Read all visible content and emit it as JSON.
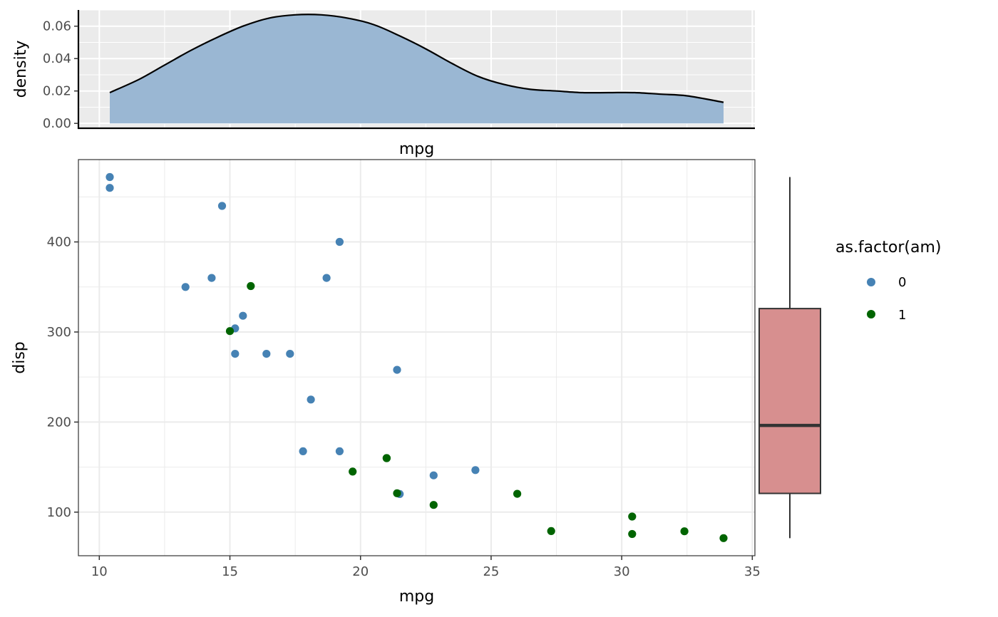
{
  "chart_data": [
    {
      "type": "area",
      "panel": "marginal-density",
      "xlabel": "mpg",
      "ylabel": "density",
      "xlim": [
        9.2,
        35.1
      ],
      "ylim": [
        -0.003,
        0.07
      ],
      "y_ticks": [
        0.0,
        0.02,
        0.04,
        0.06
      ],
      "y_tick_labels": [
        "0.00",
        "0.02",
        "0.04",
        "0.06"
      ],
      "grid": true,
      "fill_color": "#9AB7D3",
      "line_color": "#000000",
      "x": [
        10.4,
        11.5,
        12.5,
        13.5,
        14.5,
        15.5,
        16.5,
        17.5,
        18.5,
        19.5,
        20.5,
        21.5,
        22.5,
        23.5,
        24.5,
        25.5,
        26.5,
        27.5,
        28.5,
        29.5,
        30.5,
        31.5,
        32.5,
        33.9
      ],
      "y": [
        0.019,
        0.027,
        0.036,
        0.045,
        0.053,
        0.06,
        0.065,
        0.067,
        0.067,
        0.065,
        0.061,
        0.054,
        0.046,
        0.037,
        0.029,
        0.024,
        0.021,
        0.02,
        0.019,
        0.019,
        0.019,
        0.018,
        0.017,
        0.013
      ]
    },
    {
      "type": "scatter",
      "panel": "main-scatter",
      "xlabel": "mpg",
      "ylabel": "disp",
      "xlim": [
        9.2,
        35.1
      ],
      "ylim": [
        51.6,
        491.4
      ],
      "x_ticks": [
        10,
        15,
        20,
        25,
        30,
        35
      ],
      "x_tick_labels": [
        "10",
        "15",
        "20",
        "25",
        "30",
        "35"
      ],
      "y_ticks": [
        100,
        200,
        300,
        400
      ],
      "y_tick_labels": [
        "100",
        "200",
        "300",
        "400"
      ],
      "grid": true,
      "legend": {
        "title": "as.factor(am)",
        "placement": "right",
        "entries": [
          {
            "label": "0",
            "color": "#4682B4"
          },
          {
            "label": "1",
            "color": "#006400"
          }
        ]
      },
      "series": [
        {
          "name": "0",
          "color": "#4682B4",
          "points": [
            [
              21.4,
              258
            ],
            [
              18.7,
              360
            ],
            [
              18.1,
              225
            ],
            [
              14.3,
              360
            ],
            [
              24.4,
              146.7
            ],
            [
              22.8,
              140.8
            ],
            [
              19.2,
              167.6
            ],
            [
              17.8,
              167.6
            ],
            [
              16.4,
              275.8
            ],
            [
              17.3,
              275.8
            ],
            [
              15.2,
              275.8
            ],
            [
              10.4,
              472
            ],
            [
              10.4,
              460
            ],
            [
              14.7,
              440
            ],
            [
              21.5,
              120.1
            ],
            [
              15.5,
              318
            ],
            [
              15.2,
              304
            ],
            [
              13.3,
              350
            ],
            [
              19.2,
              400
            ]
          ]
        },
        {
          "name": "1",
          "color": "#006400",
          "points": [
            [
              21.0,
              160
            ],
            [
              21.0,
              160
            ],
            [
              22.8,
              108
            ],
            [
              32.4,
              78.7
            ],
            [
              30.4,
              75.7
            ],
            [
              33.9,
              71.1
            ],
            [
              27.3,
              79
            ],
            [
              26.0,
              120.3
            ],
            [
              30.4,
              95.1
            ],
            [
              15.8,
              351
            ],
            [
              19.7,
              145
            ],
            [
              15.0,
              301
            ],
            [
              21.4,
              121
            ]
          ]
        }
      ]
    },
    {
      "type": "box",
      "panel": "marginal-boxplot",
      "variable": "disp",
      "min": 71.1,
      "q1": 120.8,
      "median": 196.3,
      "q3": 326,
      "max": 472,
      "fill_color": "#D78F8F",
      "line_color": "#333333"
    }
  ]
}
